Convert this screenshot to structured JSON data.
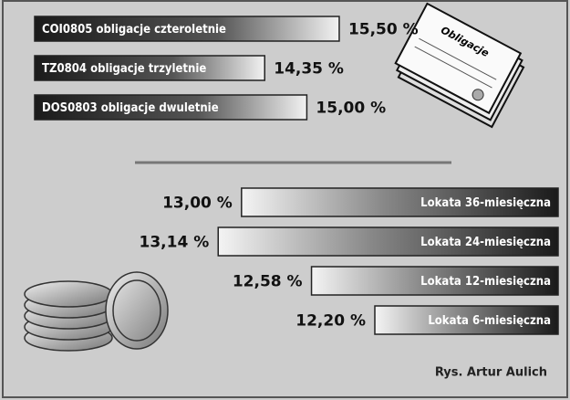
{
  "chart_data": [
    {
      "type": "bar",
      "orientation": "horizontal",
      "direction": "right",
      "categories": [
        "COI0805 obligacje czteroletnie",
        "TZ0804 obligacje trzyletnie",
        "DOS0803 obligacje dwuletnie"
      ],
      "values": [
        15.5,
        14.35,
        15.0
      ],
      "value_labels": [
        "15,50 %",
        "14,35 %",
        "15,00 %"
      ],
      "color": "#222222",
      "xlim": [
        10.8,
        16.5
      ]
    },
    {
      "type": "bar",
      "orientation": "horizontal",
      "direction": "left",
      "categories": [
        "Lokata 36-miesięczna",
        "Lokata 24-miesięczna",
        "Lokata 12-miesięczna",
        "Lokata 6-miesięczna"
      ],
      "values": [
        13.0,
        13.14,
        12.58,
        12.2
      ],
      "value_labels": [
        "13,00 %",
        "13,14 %",
        "12,58 %",
        "12,20 %"
      ],
      "color": "#222222",
      "xlim": [
        11.1,
        13.3
      ]
    }
  ],
  "document_label": "Obligacje",
  "credit": "Rys. Artur Aulich"
}
